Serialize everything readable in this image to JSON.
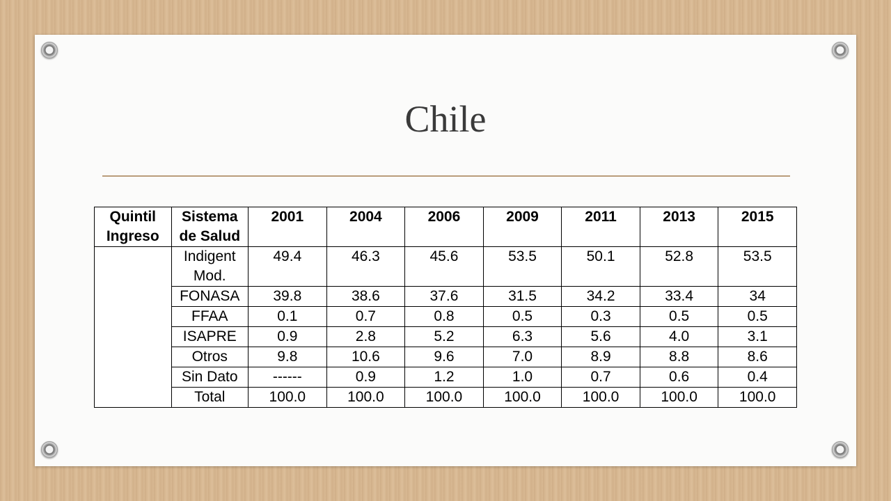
{
  "slide": {
    "title": "Chile"
  },
  "table": {
    "headers": {
      "quintil_line1": "Quintil",
      "quintil_line2": "Ingreso",
      "sistema_line1": "Sistema",
      "sistema_line2": "de Salud",
      "years": [
        "2001",
        "2004",
        "2006",
        "2009",
        "2011",
        "2013",
        "2015"
      ]
    },
    "quintil_value": "",
    "rows": [
      {
        "sistema_line1": "Indigent",
        "sistema_line2": "Mod.",
        "values": [
          "49.4",
          "46.3",
          "45.6",
          "53.5",
          "50.1",
          "52.8",
          "53.5"
        ]
      },
      {
        "sistema_line1": "FONASA",
        "sistema_line2": "",
        "values": [
          "39.8",
          "38.6",
          "37.6",
          "31.5",
          "34.2",
          "33.4",
          "34"
        ]
      },
      {
        "sistema_line1": "FFAA",
        "sistema_line2": "",
        "values": [
          "0.1",
          "0.7",
          "0.8",
          "0.5",
          "0.3",
          "0.5",
          "0.5"
        ]
      },
      {
        "sistema_line1": "ISAPRE",
        "sistema_line2": "",
        "values": [
          "0.9",
          "2.8",
          "5.2",
          "6.3",
          "5.6",
          "4.0",
          "3.1"
        ]
      },
      {
        "sistema_line1": "Otros",
        "sistema_line2": "",
        "values": [
          "9.8",
          "10.6",
          "9.6",
          "7.0",
          "8.9",
          "8.8",
          "8.6"
        ]
      },
      {
        "sistema_line1": "Sin Dato",
        "sistema_line2": "",
        "values": [
          "------",
          "0.9",
          "1.2",
          "1.0",
          "0.7",
          "0.6",
          "0.4"
        ]
      },
      {
        "sistema_line1": "Total",
        "sistema_line2": "",
        "values": [
          "100.0",
          "100.0",
          "100.0",
          "100.0",
          "100.0",
          "100.0",
          "100.0"
        ]
      }
    ]
  },
  "colors": {
    "background_wood": "#d8b892",
    "card": "#fbfbfa",
    "title_text": "#3a3a3a",
    "rule": "#b99c7a"
  }
}
